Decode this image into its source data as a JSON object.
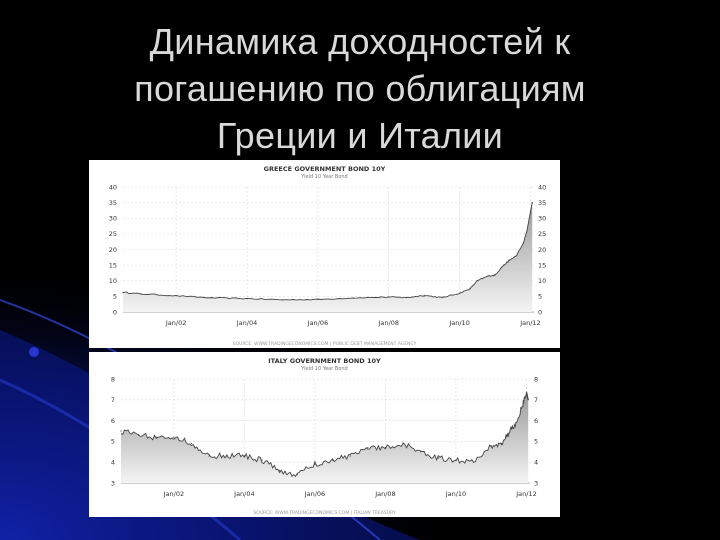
{
  "slide": {
    "title_lines": [
      "Динамика доходностей к",
      "погашению по облигациям",
      "Греции и Италии"
    ]
  },
  "chart_data": [
    {
      "type": "area",
      "title": "GREECE GOVERNMENT BOND 10Y",
      "subtitle": "Yield 10 Year Bond",
      "source": "SOURCE: WWW.TRADINGECONOMICS.COM | PUBLIC DEBT MANAGEMENT AGENCY",
      "ylim": [
        0,
        40
      ],
      "yticks": [
        "0",
        "5",
        "10",
        "15",
        "20",
        "25",
        "30",
        "35",
        "40"
      ],
      "xticks": [
        "Jan/02",
        "Jan/04",
        "Jan/06",
        "Jan/08",
        "Jan/10",
        "Jan/12"
      ],
      "x": [
        2000.5,
        2001,
        2002,
        2003,
        2004,
        2005,
        2006,
        2007,
        2008,
        2008.5,
        2009,
        2009.5,
        2010,
        2010.3,
        2010.5,
        2010.8,
        2011,
        2011.2,
        2011.4,
        2011.6,
        2011.8,
        2011.9,
        2012.0,
        2012.05
      ],
      "values": [
        6.3,
        5.8,
        5.2,
        4.5,
        4.3,
        3.9,
        4.0,
        4.5,
        4.8,
        4.6,
        5.3,
        4.6,
        6.0,
        7.5,
        10.0,
        11.5,
        11.8,
        14.5,
        16.5,
        18.0,
        22.0,
        26.0,
        32.0,
        35.0
      ]
    },
    {
      "type": "area",
      "title": "ITALY GOVERNMENT BOND 10Y",
      "subtitle": "Yield 10 Year Bond",
      "source": "SOURCE: WWW.TRADINGECONOMICS.COM | ITALIAN TREASURY",
      "ylim": [
        3,
        8
      ],
      "yticks": [
        "3",
        "4",
        "5",
        "6",
        "7",
        "8"
      ],
      "xticks": [
        "Jan/02",
        "Jan/04",
        "Jan/06",
        "Jan/08",
        "Jan/10",
        "Jan/12"
      ],
      "x": [
        2000.5,
        2001,
        2001.5,
        2002,
        2002.5,
        2003,
        2003.5,
        2004,
        2004.5,
        2005,
        2005.5,
        2006,
        2006.5,
        2007,
        2007.5,
        2008,
        2008.5,
        2009,
        2009.5,
        2010,
        2010.5,
        2011,
        2011.3,
        2011.5,
        2011.7,
        2011.9,
        2012.0,
        2012.05
      ],
      "values": [
        5.5,
        5.3,
        5.2,
        5.2,
        4.9,
        4.3,
        4.3,
        4.3,
        4.1,
        3.6,
        3.4,
        3.9,
        4.1,
        4.3,
        4.7,
        4.7,
        4.9,
        4.5,
        4.2,
        4.1,
        4.0,
        4.8,
        4.9,
        5.4,
        5.9,
        6.8,
        7.3,
        7.0
      ]
    }
  ]
}
